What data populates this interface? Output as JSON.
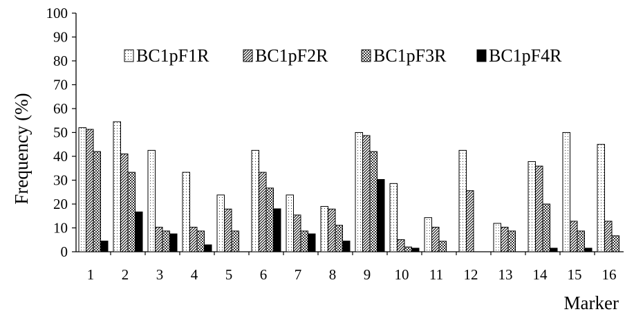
{
  "chart_data": {
    "type": "bar",
    "xlabel": "Marker",
    "ylabel": "Frequency  (%)",
    "ylim": [
      0,
      100
    ],
    "yticks": [
      "0",
      "10",
      "20",
      "30",
      "40",
      "50",
      "60",
      "70",
      "80",
      "90",
      "100"
    ],
    "categories": [
      "1",
      "2",
      "3",
      "4",
      "5",
      "6",
      "7",
      "8",
      "9",
      "10",
      "11",
      "12",
      "13",
      "14",
      "15",
      "16"
    ],
    "legend_position": "top",
    "grid": false,
    "series": [
      {
        "name": "BC1pF1R",
        "pattern": "dots",
        "values": [
          52,
          54.5,
          42.5,
          33.3,
          23.8,
          42.5,
          23.8,
          19,
          50,
          28.6,
          14.3,
          42.5,
          11.9,
          37.8,
          50,
          45
        ]
      },
      {
        "name": "BC1pF2R",
        "pattern": "diag",
        "values": [
          51.3,
          41,
          10.3,
          10.3,
          17.9,
          33.3,
          15.4,
          17.9,
          48.7,
          5.1,
          10.3,
          25.6,
          10.3,
          35.9,
          12.8,
          12.8
        ]
      },
      {
        "name": "BC1pF3R",
        "pattern": "check",
        "values": [
          42,
          33.3,
          8.7,
          8.7,
          8.7,
          26.7,
          8.7,
          11.1,
          42,
          2,
          4.4,
          0,
          8.7,
          20,
          8.7,
          6.7
        ]
      },
      {
        "name": "BC1pF4R",
        "pattern": "solid",
        "values": [
          4.5,
          16.7,
          7.5,
          2.9,
          0,
          18,
          7.5,
          4.5,
          30.3,
          1.5,
          0,
          0,
          0,
          1.5,
          1.5,
          0
        ]
      }
    ]
  }
}
